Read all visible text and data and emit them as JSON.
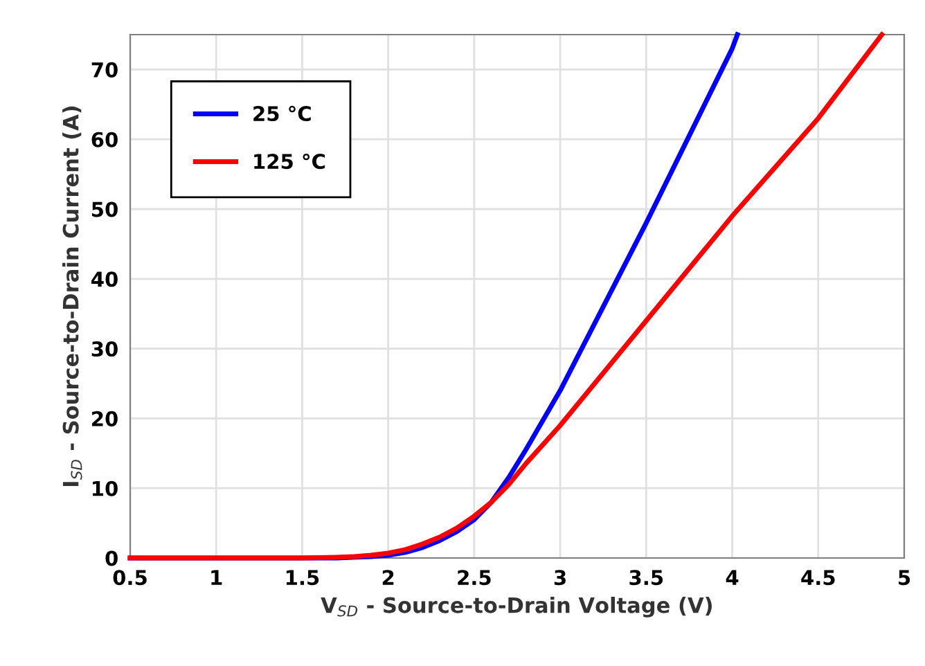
{
  "chart_data": {
    "type": "line",
    "xlabel": "V$_{SD}$ - Source-to-Drain Voltage (V)",
    "ylabel": "I$_{SD}$ - Source-to-Drain Current (A)",
    "xlim": [
      0.5,
      5
    ],
    "xticks": [
      0.5,
      1,
      1.5,
      2,
      2.5,
      3,
      3.5,
      4,
      4.5,
      5
    ],
    "ylim": [
      0,
      75
    ],
    "yticks": [
      0,
      10,
      20,
      30,
      40,
      50,
      60,
      70
    ],
    "grid": true,
    "legend": "top left",
    "marker": "none",
    "line_style": "solid",
    "series": [
      {
        "name": "25 °C",
        "color": "#0000ff",
        "x": [
          0.5,
          1.0,
          1.5,
          1.7,
          1.9,
          2.0,
          2.1,
          2.2,
          2.3,
          2.4,
          2.5,
          2.6,
          2.7,
          2.8,
          3.0,
          3.25,
          3.5,
          3.75,
          4.0,
          4.03
        ],
        "values": [
          0,
          0,
          0,
          0,
          0.2,
          0.4,
          0.8,
          1.5,
          2.5,
          3.8,
          5.5,
          8,
          11.5,
          15.5,
          24,
          36,
          48,
          60.5,
          73,
          75
        ]
      },
      {
        "name": "125 °C",
        "color": "#ff0000",
        "x": [
          0.5,
          1.0,
          1.5,
          1.7,
          1.8,
          1.9,
          2.0,
          2.1,
          2.2,
          2.3,
          2.4,
          2.5,
          2.6,
          2.7,
          2.8,
          3.0,
          3.5,
          4.0,
          4.5,
          4.87
        ],
        "values": [
          0,
          0,
          0,
          0.1,
          0.2,
          0.4,
          0.7,
          1.2,
          2,
          3,
          4.3,
          6,
          8,
          10.5,
          13.5,
          19,
          34,
          49,
          63,
          75
        ]
      }
    ]
  }
}
